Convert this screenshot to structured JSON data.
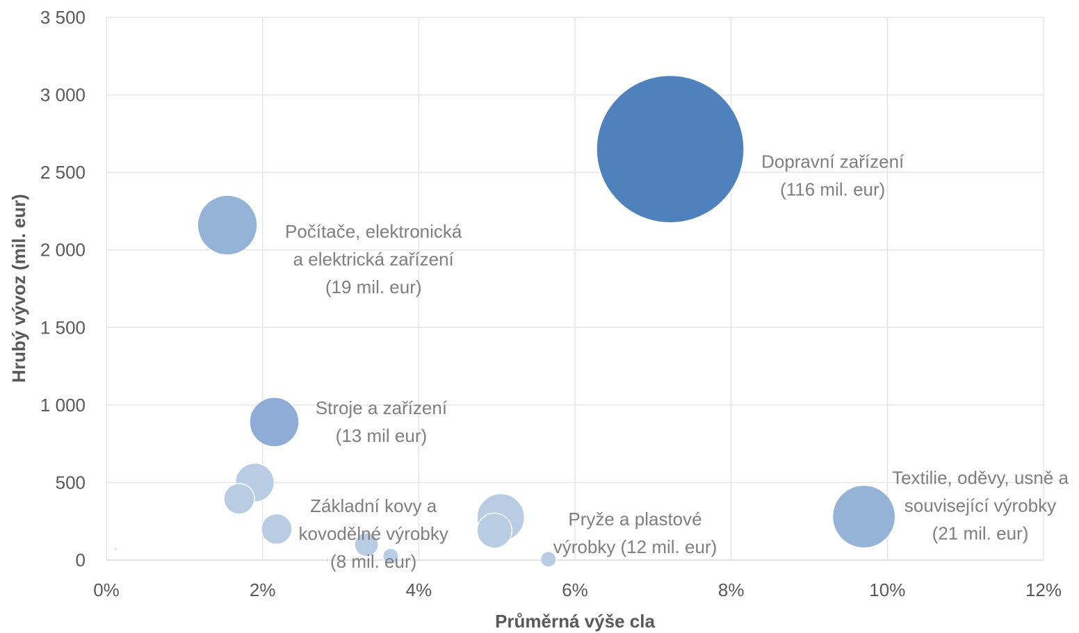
{
  "chart_data": {
    "type": "bubble",
    "xlabel": "Průměrná výše cla",
    "ylabel": "Hrubý vývoz (mil. eur)",
    "xlim": [
      0,
      0.12
    ],
    "ylim": [
      0,
      3500
    ],
    "x_ticks": [
      0,
      0.02,
      0.04,
      0.06,
      0.08,
      0.1,
      0.12
    ],
    "x_tick_labels": [
      "0%",
      "2%",
      "4%",
      "6%",
      "8%",
      "10%",
      "12%"
    ],
    "y_ticks": [
      0,
      500,
      1000,
      1500,
      2000,
      2500,
      3000,
      3500
    ],
    "y_tick_labels": [
      "0",
      "500",
      "1 000",
      "1 500",
      "2 000",
      "2 500",
      "3 000",
      "3 500"
    ],
    "grid": true,
    "legend": "none",
    "points": [
      {
        "x": 0.0722,
        "y": 2650,
        "size": 116,
        "color": "#4f81bd"
      },
      {
        "x": 0.0155,
        "y": 2160,
        "size": 19,
        "color": "#95b3d7"
      },
      {
        "x": 0.0215,
        "y": 890,
        "size": 13,
        "color": "#8eacd6"
      },
      {
        "x": 0.097,
        "y": 280,
        "size": 21,
        "color": "#95b3d7"
      },
      {
        "x": 0.019,
        "y": 500,
        "size": 8,
        "color": "#b8cce4"
      },
      {
        "x": 0.017,
        "y": 395,
        "size": 5,
        "color": "#b8cce4"
      },
      {
        "x": 0.0218,
        "y": 200,
        "size": 5,
        "color": "#b8cce4"
      },
      {
        "x": 0.0497,
        "y": 190,
        "size": 6.5,
        "color": "#b8cce4"
      },
      {
        "x": 0.0505,
        "y": 275,
        "size": 12,
        "color": "#b8cce4"
      },
      {
        "x": 0.0333,
        "y": 100,
        "size": 3,
        "color": "#b8cce4"
      },
      {
        "x": 0.0364,
        "y": 25,
        "size": 1.3,
        "color": "#b8cce4"
      },
      {
        "x": 0.0566,
        "y": 5,
        "size": 1.3,
        "color": "#b8cce4"
      },
      {
        "x": 0.0012,
        "y": 70,
        "size": 0.01,
        "color": "#b8cce4"
      },
      {
        "x": 0.0283,
        "y": 0,
        "size": 0.01,
        "color": "#b8cce4"
      }
    ],
    "annotations": [
      {
        "lines": [
          "Dopravní zařízení",
          "(116 mil. eur)"
        ],
        "x": 0.093,
        "y": 2530
      },
      {
        "lines": [
          "Počítače, elektronická",
          "a elektrická zařízení",
          "(19 mil. eur)"
        ],
        "x": 0.0342,
        "y": 2080
      },
      {
        "lines": [
          "Stroje a zařízení",
          "(13 mil eur)"
        ],
        "x": 0.0352,
        "y": 940
      },
      {
        "lines": [
          "Základní kovy a",
          "kovodělné výrobky",
          "(8 mil. eur)"
        ],
        "x": 0.0342,
        "y": 310
      },
      {
        "lines": [
          "Pryže a plastové",
          "výrobky (12 mil. eur)"
        ],
        "x": 0.0677,
        "y": 225
      },
      {
        "lines": [
          "Textilie, oděvy, usně a",
          "související výrobky",
          "(21 mil. eur)"
        ],
        "x": 0.1119,
        "y": 490
      }
    ]
  }
}
